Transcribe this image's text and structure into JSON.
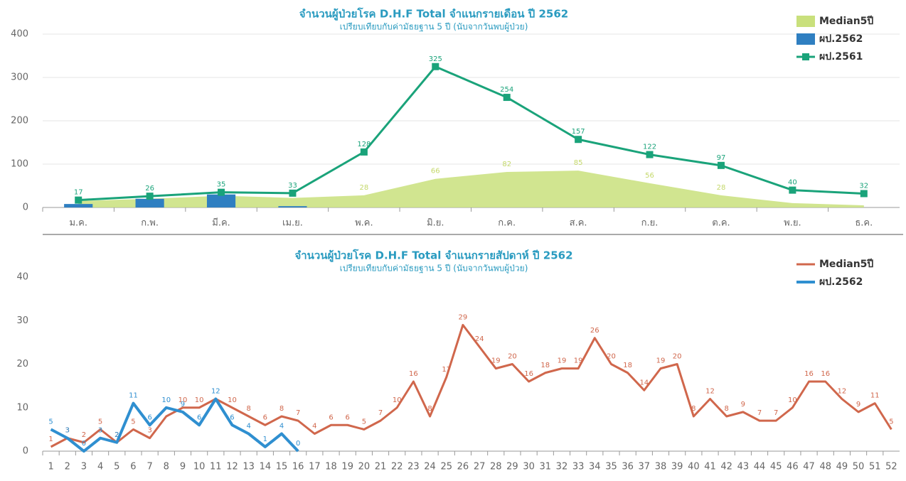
{
  "chart_data": [
    {
      "type": "combo",
      "title": "จำนวนผู้ป่วยโรค D.H.F Total จำแนกรายเดือน ปี 2562",
      "subtitle": "เปรียบเทียบกับค่ามัธยฐาน 5 ปี (นับจากวันพบผู้ป่วย)",
      "categories": [
        "ม.ค.",
        "ก.พ.",
        "มี.ค.",
        "เม.ย.",
        "พ.ค.",
        "มิ.ย.",
        "ก.ค.",
        "ส.ค.",
        "ก.ย.",
        "ต.ค.",
        "พ.ย.",
        "ธ.ค."
      ],
      "ylim": [
        0,
        400
      ],
      "yticks": [
        0,
        100,
        200,
        300,
        400
      ],
      "grid": true,
      "legend": "top-right",
      "series": [
        {
          "name": "Median5ปี",
          "kind": "area",
          "color": "#c9e07c",
          "values": [
            15,
            20,
            27,
            22,
            28,
            66,
            82,
            85,
            56,
            28,
            10,
            5
          ],
          "value_labels": [
            null,
            null,
            null,
            null,
            "28",
            "66",
            "82",
            "85",
            "56",
            "28",
            null,
            null
          ]
        },
        {
          "name": "ผป.2562",
          "kind": "bar",
          "color": "#2f7fc1",
          "values": [
            8,
            20,
            30,
            3,
            null,
            null,
            null,
            null,
            null,
            null,
            null,
            null
          ]
        },
        {
          "name": "ผป.2561",
          "kind": "line",
          "color": "#1aa37a",
          "values": [
            17,
            26,
            35,
            33,
            128,
            325,
            254,
            157,
            122,
            97,
            40,
            32
          ],
          "value_labels": [
            "17",
            "26",
            "35",
            "33",
            "128",
            "325",
            "254",
            "157",
            "122",
            "97",
            "40",
            "32"
          ]
        }
      ]
    },
    {
      "type": "line",
      "title": "จำนวนผู้ป่วยโรค D.H.F Total จำแนกรายสัปดาห์ ปี 2562",
      "subtitle": "เปรียบเทียบกับค่ามัธยฐาน 5 ปี (นับจากวันพบผู้ป่วย)",
      "categories": [
        "1",
        "2",
        "3",
        "4",
        "5",
        "6",
        "7",
        "8",
        "9",
        "10",
        "11",
        "12",
        "13",
        "14",
        "15",
        "16",
        "17",
        "18",
        "19",
        "20",
        "21",
        "22",
        "23",
        "24",
        "25",
        "26",
        "27",
        "28",
        "29",
        "30",
        "31",
        "32",
        "33",
        "34",
        "35",
        "36",
        "37",
        "38",
        "39",
        "40",
        "41",
        "42",
        "43",
        "44",
        "45",
        "46",
        "47",
        "48",
        "49",
        "50",
        "51",
        "52"
      ],
      "ylim": [
        0,
        40
      ],
      "yticks": [
        0,
        10,
        20,
        30,
        40
      ],
      "grid": false,
      "legend": "top-right",
      "series": [
        {
          "name": "Median5ปี",
          "kind": "line",
          "color": "#d0674c",
          "values": [
            1,
            3,
            2,
            5,
            2,
            5,
            3,
            8,
            10,
            10,
            12,
            10,
            8,
            6,
            8,
            7,
            4,
            6,
            6,
            5,
            7,
            10,
            16,
            8,
            17,
            29,
            24,
            19,
            20,
            16,
            18,
            19,
            19,
            26,
            20,
            18,
            14,
            19,
            20,
            8,
            12,
            8,
            9,
            7,
            7,
            10,
            16,
            16,
            12,
            9,
            11,
            5
          ],
          "value_labels": [
            "1",
            "3",
            "2",
            "5",
            "2",
            "5",
            "3",
            null,
            "10",
            "10",
            null,
            "10",
            "8",
            "6",
            "8",
            "7",
            "4",
            "6",
            "6",
            "5",
            "7",
            "10",
            "16",
            "8",
            "17",
            "29",
            "24",
            "19",
            "20",
            "16",
            "18",
            "19",
            "19",
            "26",
            "20",
            "18",
            "14",
            "19",
            "20",
            "8",
            "12",
            "8",
            "9",
            "7",
            "7",
            "10",
            "16",
            "16",
            "12",
            "9",
            "11",
            "5"
          ]
        },
        {
          "name": "ผป.2562",
          "kind": "line",
          "color": "#2f8fd0",
          "width": 4,
          "values": [
            5,
            3,
            0,
            3,
            2,
            11,
            6,
            10,
            9,
            6,
            12,
            6,
            4,
            1,
            4,
            0,
            null,
            null,
            null,
            null,
            null,
            null,
            null,
            null,
            null,
            null,
            null,
            null,
            null,
            null,
            null,
            null,
            null,
            null,
            null,
            null,
            null,
            null,
            null,
            null,
            null,
            null,
            null,
            null,
            null,
            null,
            null,
            null,
            null,
            null,
            null,
            null
          ],
          "value_labels": [
            "5",
            "3",
            "0",
            "3",
            "2",
            "11",
            "6",
            "10",
            "9",
            "6",
            "12",
            "6",
            "4",
            "1",
            "4",
            "0",
            null,
            null,
            null,
            null,
            null,
            null,
            null,
            null,
            null,
            null,
            null,
            null,
            null,
            null,
            null,
            null,
            null,
            null,
            null,
            null,
            null,
            null,
            null,
            null,
            null,
            null,
            null,
            null,
            null,
            null,
            null,
            null,
            null,
            null,
            null,
            null
          ]
        }
      ]
    }
  ]
}
